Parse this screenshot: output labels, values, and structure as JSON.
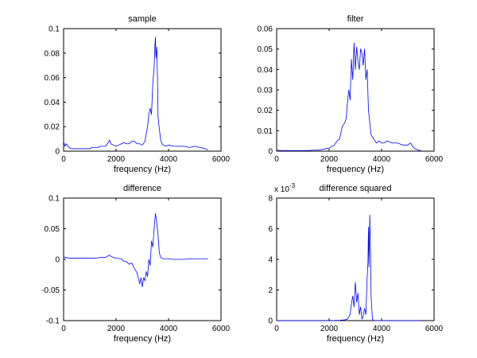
{
  "chart_data": [
    {
      "type": "line",
      "title": "sample",
      "xlabel": "frequency (Hz)",
      "ylabel": "",
      "xlim": [
        0,
        6000
      ],
      "ylim": [
        0,
        0.1
      ],
      "xticks": [
        0,
        2000,
        4000,
        6000
      ],
      "yticks": [
        0,
        0.02,
        0.04,
        0.06,
        0.08,
        0.1
      ],
      "xtick_labels": [
        "0",
        "2000",
        "4000",
        "6000"
      ],
      "ytick_labels": [
        "0",
        "0.02",
        "0.04",
        "0.06",
        "0.08",
        "0.1"
      ],
      "exponent_label": "",
      "color": "#0000ff",
      "grid": false,
      "series": [
        {
          "x": [
            0,
            50,
            100,
            200,
            300,
            400,
            500,
            600,
            700,
            800,
            900,
            1000,
            1100,
            1200,
            1300,
            1400,
            1500,
            1600,
            1700,
            1750,
            1800,
            1900,
            2000,
            2100,
            2200,
            2300,
            2400,
            2500,
            2600,
            2700,
            2800,
            2900,
            3000,
            3100,
            3200,
            3250,
            3300,
            3350,
            3400,
            3450,
            3480,
            3500,
            3520,
            3550,
            3580,
            3600,
            3650,
            3700,
            3750,
            3800,
            3900,
            4000,
            4200,
            4400,
            4600,
            4800,
            5000,
            5200,
            5400,
            5500
          ],
          "y": [
            0.008,
            0.004,
            0.006,
            0.003,
            0.002,
            0.002,
            0.002,
            0.002,
            0.002,
            0.002,
            0.002,
            0.002,
            0.003,
            0.003,
            0.003,
            0.004,
            0.004,
            0.004,
            0.007,
            0.009,
            0.006,
            0.005,
            0.004,
            0.005,
            0.006,
            0.007,
            0.006,
            0.006,
            0.008,
            0.008,
            0.006,
            0.006,
            0.005,
            0.008,
            0.02,
            0.03,
            0.035,
            0.03,
            0.055,
            0.068,
            0.086,
            0.093,
            0.076,
            0.085,
            0.06,
            0.028,
            0.018,
            0.009,
            0.006,
            0.005,
            0.004,
            0.005,
            0.004,
            0.004,
            0.004,
            0.003,
            0.004,
            0.003,
            0.002,
            0.001
          ]
        }
      ]
    },
    {
      "type": "line",
      "title": "filter",
      "xlabel": "frequency (Hz)",
      "ylabel": "",
      "xlim": [
        0,
        6000
      ],
      "ylim": [
        0,
        0.06
      ],
      "xticks": [
        0,
        2000,
        4000,
        6000
      ],
      "yticks": [
        0,
        0.01,
        0.02,
        0.03,
        0.04,
        0.05,
        0.06
      ],
      "xtick_labels": [
        "0",
        "2000",
        "4000",
        "6000"
      ],
      "ytick_labels": [
        "0",
        "0.01",
        "0.02",
        "0.03",
        "0.04",
        "0.05",
        "0.06"
      ],
      "exponent_label": "",
      "color": "#0000ff",
      "grid": false,
      "series": [
        {
          "x": [
            0,
            200,
            400,
            600,
            800,
            1000,
            1200,
            1400,
            1600,
            1800,
            2000,
            2200,
            2300,
            2400,
            2500,
            2600,
            2650,
            2700,
            2750,
            2800,
            2850,
            2900,
            2950,
            3000,
            3050,
            3100,
            3150,
            3200,
            3250,
            3300,
            3350,
            3400,
            3450,
            3500,
            3600,
            3700,
            3800,
            3900,
            4000,
            4100,
            4200,
            4400,
            4600,
            4800,
            5000,
            5100,
            5200,
            5300,
            5400,
            5500
          ],
          "y": [
            0.0005,
            0.0003,
            0.0003,
            0.0003,
            0.0003,
            0.0003,
            0.0003,
            0.0005,
            0.0005,
            0.001,
            0.0015,
            0.003,
            0.005,
            0.006,
            0.012,
            0.014,
            0.016,
            0.024,
            0.03,
            0.025,
            0.045,
            0.035,
            0.053,
            0.04,
            0.051,
            0.044,
            0.04,
            0.05,
            0.048,
            0.042,
            0.05,
            0.035,
            0.04,
            0.02,
            0.008,
            0.006,
            0.004,
            0.005,
            0.004,
            0.004,
            0.005,
            0.004,
            0.004,
            0.003,
            0.003,
            0.004,
            0.002,
            0.001,
            0.0005,
            0.0003
          ]
        }
      ]
    },
    {
      "type": "line",
      "title": "difference",
      "xlabel": "frequency (Hz)",
      "ylabel": "",
      "xlim": [
        0,
        6000
      ],
      "ylim": [
        -0.1,
        0.1
      ],
      "xticks": [
        0,
        2000,
        4000,
        6000
      ],
      "yticks": [
        -0.1,
        -0.05,
        0,
        0.05,
        0.1
      ],
      "xtick_labels": [
        "0",
        "2000",
        "4000",
        "6000"
      ],
      "ytick_labels": [
        "-0.1",
        "-0.05",
        "0",
        "0.05",
        "0.1"
      ],
      "exponent_label": "",
      "color": "#0000ff",
      "grid": false,
      "series": [
        {
          "x": [
            0,
            100,
            200,
            400,
            600,
            800,
            1000,
            1200,
            1400,
            1600,
            1750,
            1800,
            1900,
            2000,
            2200,
            2300,
            2400,
            2500,
            2600,
            2700,
            2800,
            2900,
            2950,
            3000,
            3050,
            3100,
            3150,
            3200,
            3250,
            3300,
            3350,
            3400,
            3450,
            3500,
            3550,
            3600,
            3650,
            3700,
            3800,
            4000,
            4200,
            4400,
            4600,
            4800,
            5000,
            5200,
            5400,
            5500
          ],
          "y": [
            0.004,
            0.003,
            0.002,
            0.002,
            0.002,
            0.002,
            0.002,
            0.002,
            0.003,
            0.003,
            0.007,
            0.005,
            0.003,
            0.002,
            0.001,
            -0.003,
            -0.004,
            -0.008,
            -0.006,
            -0.015,
            -0.022,
            -0.04,
            -0.03,
            -0.045,
            -0.03,
            -0.035,
            -0.02,
            -0.028,
            0.0,
            -0.01,
            0.03,
            0.02,
            0.05,
            0.075,
            0.06,
            0.04,
            0.01,
            0.003,
            0.001,
            0.001,
            0.0,
            0.0,
            0.0,
            0.001,
            0.001,
            0.001,
            0.001,
            0.001
          ]
        }
      ]
    },
    {
      "type": "line",
      "title": "difference squared",
      "xlabel": "frequency (Hz)",
      "ylabel": "",
      "xlim": [
        0,
        6000
      ],
      "ylim": [
        0,
        0.008
      ],
      "xticks": [
        0,
        2000,
        4000,
        6000
      ],
      "yticks": [
        0,
        0.002,
        0.004,
        0.006,
        0.008
      ],
      "xtick_labels": [
        "0",
        "2000",
        "4000",
        "6000"
      ],
      "ytick_labels": [
        "0",
        "2",
        "4",
        "6",
        "8"
      ],
      "exponent_label": "x 10",
      "exponent_power": "-3",
      "color": "#0000ff",
      "grid": false,
      "series": [
        {
          "x": [
            0,
            500,
            1000,
            1500,
            2000,
            2400,
            2600,
            2700,
            2800,
            2850,
            2900,
            2950,
            3000,
            3050,
            3100,
            3150,
            3200,
            3250,
            3300,
            3350,
            3400,
            3450,
            3480,
            3500,
            3520,
            3550,
            3580,
            3600,
            3650,
            3700,
            3800,
            4000,
            4500,
            5000,
            5500
          ],
          "y": [
            0,
            0,
            0,
            0,
            0,
            2e-05,
            5e-05,
            0.0001,
            0.0004,
            0.0011,
            0.0016,
            0.0009,
            0.0025,
            0.0012,
            0.0018,
            0.0004,
            0.0009,
            0.0001,
            0.0003,
            0.0008,
            0.0004,
            0.0028,
            0.0038,
            0.0061,
            0.0035,
            0.0069,
            0.0042,
            0.0016,
            0.0001,
            1e-05,
            0,
            0,
            0,
            0,
            0
          ]
        }
      ]
    }
  ]
}
